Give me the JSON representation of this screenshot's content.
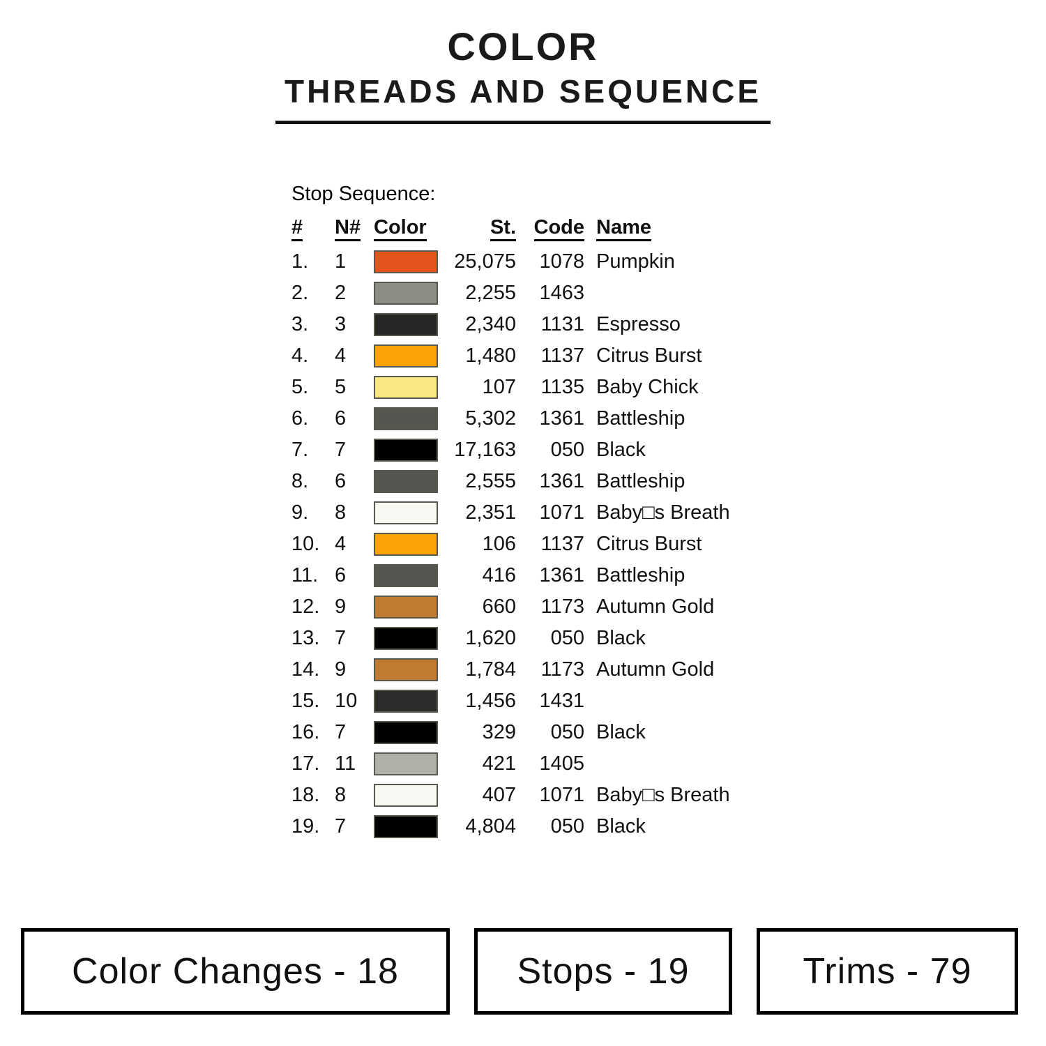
{
  "header": {
    "title": "COLOR",
    "subtitle": "THREADS AND SEQUENCE"
  },
  "table": {
    "section_label": "Stop Sequence:",
    "columns": [
      "#",
      "N#",
      "Color",
      "St.",
      "Code",
      "Name"
    ],
    "rows": [
      {
        "seq": "1.",
        "n": "1",
        "swatch": "#E5541C",
        "st": "25,075",
        "code": "1078",
        "name": "Pumpkin"
      },
      {
        "seq": "2.",
        "n": "2",
        "swatch": "#8A8E84",
        "st": "2,255",
        "code": "1463",
        "name": ""
      },
      {
        "seq": "3.",
        "n": "3",
        "swatch": "#262724",
        "st": "2,340",
        "code": "1131",
        "name": "Espresso"
      },
      {
        "seq": "4.",
        "n": "4",
        "swatch": "#FCA204",
        "st": "1,480",
        "code": "1137",
        "name": "Citrus Burst"
      },
      {
        "seq": "5.",
        "n": "5",
        "swatch": "#F8E882",
        "st": "107",
        "code": "1135",
        "name": "Baby Chick"
      },
      {
        "seq": "6.",
        "n": "6",
        "swatch": "#545750",
        "st": "5,302",
        "code": "1361",
        "name": "Battleship"
      },
      {
        "seq": "7.",
        "n": "7",
        "swatch": "#000000",
        "st": "17,163",
        "code": "050",
        "name": "Black"
      },
      {
        "seq": "8.",
        "n": "6",
        "swatch": "#545750",
        "st": "2,555",
        "code": "1361",
        "name": "Battleship"
      },
      {
        "seq": "9.",
        "n": "8",
        "swatch": "#F8F8F2",
        "st": "2,351",
        "code": "1071",
        "name": "Baby□s Breath"
      },
      {
        "seq": "10.",
        "n": "4",
        "swatch": "#FCA204",
        "st": "106",
        "code": "1137",
        "name": "Citrus Burst"
      },
      {
        "seq": "11.",
        "n": "6",
        "swatch": "#545750",
        "st": "416",
        "code": "1361",
        "name": "Battleship"
      },
      {
        "seq": "12.",
        "n": "9",
        "swatch": "#C07B32",
        "st": "660",
        "code": "1173",
        "name": "Autumn Gold"
      },
      {
        "seq": "13.",
        "n": "7",
        "swatch": "#000000",
        "st": "1,620",
        "code": "050",
        "name": "Black"
      },
      {
        "seq": "14.",
        "n": "9",
        "swatch": "#C07B32",
        "st": "1,784",
        "code": "1173",
        "name": "Autumn Gold"
      },
      {
        "seq": "15.",
        "n": "10",
        "swatch": "#2B2D2B",
        "st": "1,456",
        "code": "1431",
        "name": ""
      },
      {
        "seq": "16.",
        "n": "7",
        "swatch": "#000000",
        "st": "329",
        "code": "050",
        "name": "Black"
      },
      {
        "seq": "17.",
        "n": "11",
        "swatch": "#AFB3A7",
        "st": "421",
        "code": "1405",
        "name": ""
      },
      {
        "seq": "18.",
        "n": "8",
        "swatch": "#F8F8F2",
        "st": "407",
        "code": "1071",
        "name": "Baby□s Breath"
      },
      {
        "seq": "19.",
        "n": "7",
        "swatch": "#000000",
        "st": "4,804",
        "code": "050",
        "name": "Black"
      }
    ]
  },
  "footer": {
    "boxes": [
      {
        "label": "Color Changes - 18"
      },
      {
        "label": "Stops - 19"
      },
      {
        "label": "Trims - 79"
      }
    ]
  }
}
